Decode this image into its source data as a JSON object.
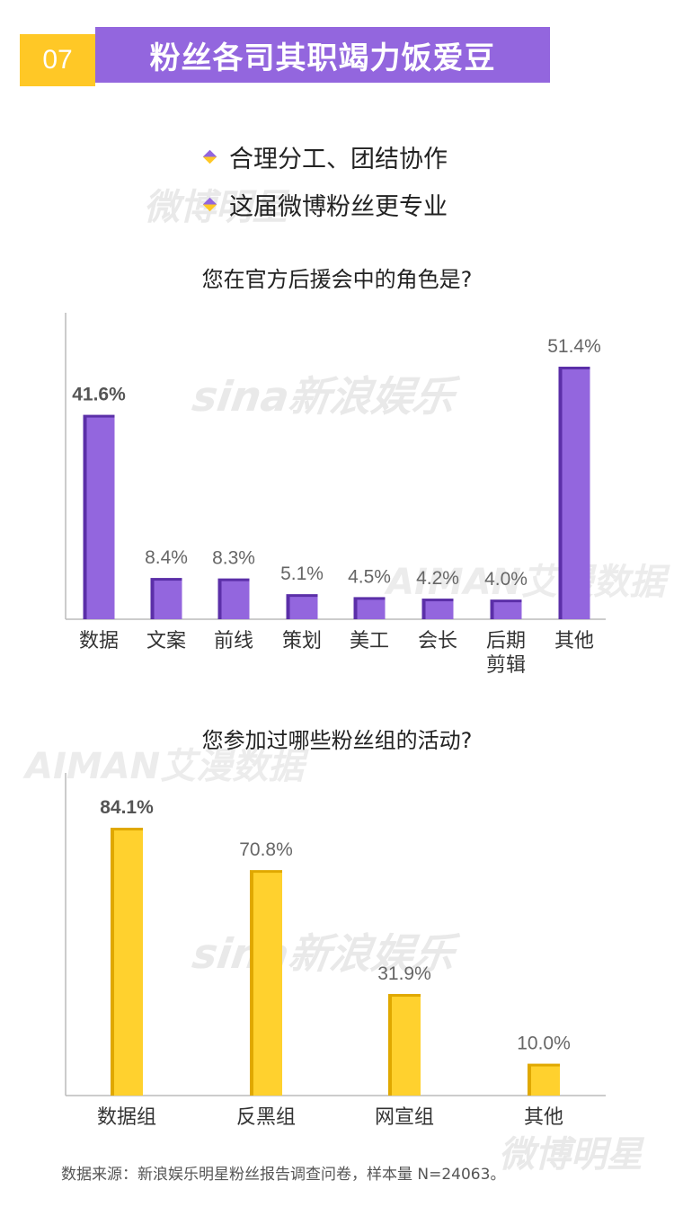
{
  "header": {
    "number": "07",
    "title": "粉丝各司其职竭力饭爱豆"
  },
  "bullets": [
    "合理分工、团结协作",
    "这届微博粉丝更专业"
  ],
  "watermarks": {
    "weibo": "微博明星",
    "sina": "sina新浪娱乐",
    "aiman": "AIMAN艾漫数据"
  },
  "colors": {
    "purple": "#9366DE",
    "purple_edge": "#5B2FA8",
    "yellow": "#FFD12E",
    "yellow_edge": "#E0A800"
  },
  "chart_data": [
    {
      "type": "bar",
      "title": "您在官方后援会中的角色是?",
      "categories": [
        "数据",
        "文案",
        "前线",
        "策划",
        "美工",
        "会长",
        "后期剪辑",
        "其他"
      ],
      "category_lines": [
        [
          "数据"
        ],
        [
          "文案"
        ],
        [
          "前线"
        ],
        [
          "策划"
        ],
        [
          "美工"
        ],
        [
          "会长"
        ],
        [
          "后期",
          "剪辑"
        ],
        [
          "其他"
        ]
      ],
      "values": [
        41.6,
        8.4,
        8.3,
        5.1,
        4.5,
        4.2,
        4.0,
        51.4
      ],
      "value_labels": [
        "41.6%",
        "8.4%",
        "8.3%",
        "5.1%",
        "4.5%",
        "4.2%",
        "4.0%",
        "51.4%"
      ],
      "bold_labels": [
        true,
        false,
        false,
        false,
        false,
        false,
        false,
        false
      ],
      "ylim": [
        0,
        60
      ],
      "color": "#9366DE"
    },
    {
      "type": "bar",
      "title": "您参加过哪些粉丝组的活动?",
      "categories": [
        "数据组",
        "反黑组",
        "网宣组",
        "其他"
      ],
      "category_lines": [
        [
          "数据组"
        ],
        [
          "反黑组"
        ],
        [
          "网宣组"
        ],
        [
          "其他"
        ]
      ],
      "values": [
        84.1,
        70.8,
        31.9,
        10.0
      ],
      "value_labels": [
        "84.1%",
        "70.8%",
        "31.9%",
        "10.0%"
      ],
      "bold_labels": [
        true,
        false,
        false,
        false
      ],
      "ylim": [
        0,
        100
      ],
      "color": "#FFD12E"
    }
  ],
  "source": "数据来源：新浪娱乐明星粉丝报告调查问卷，样本量 N=24063。"
}
